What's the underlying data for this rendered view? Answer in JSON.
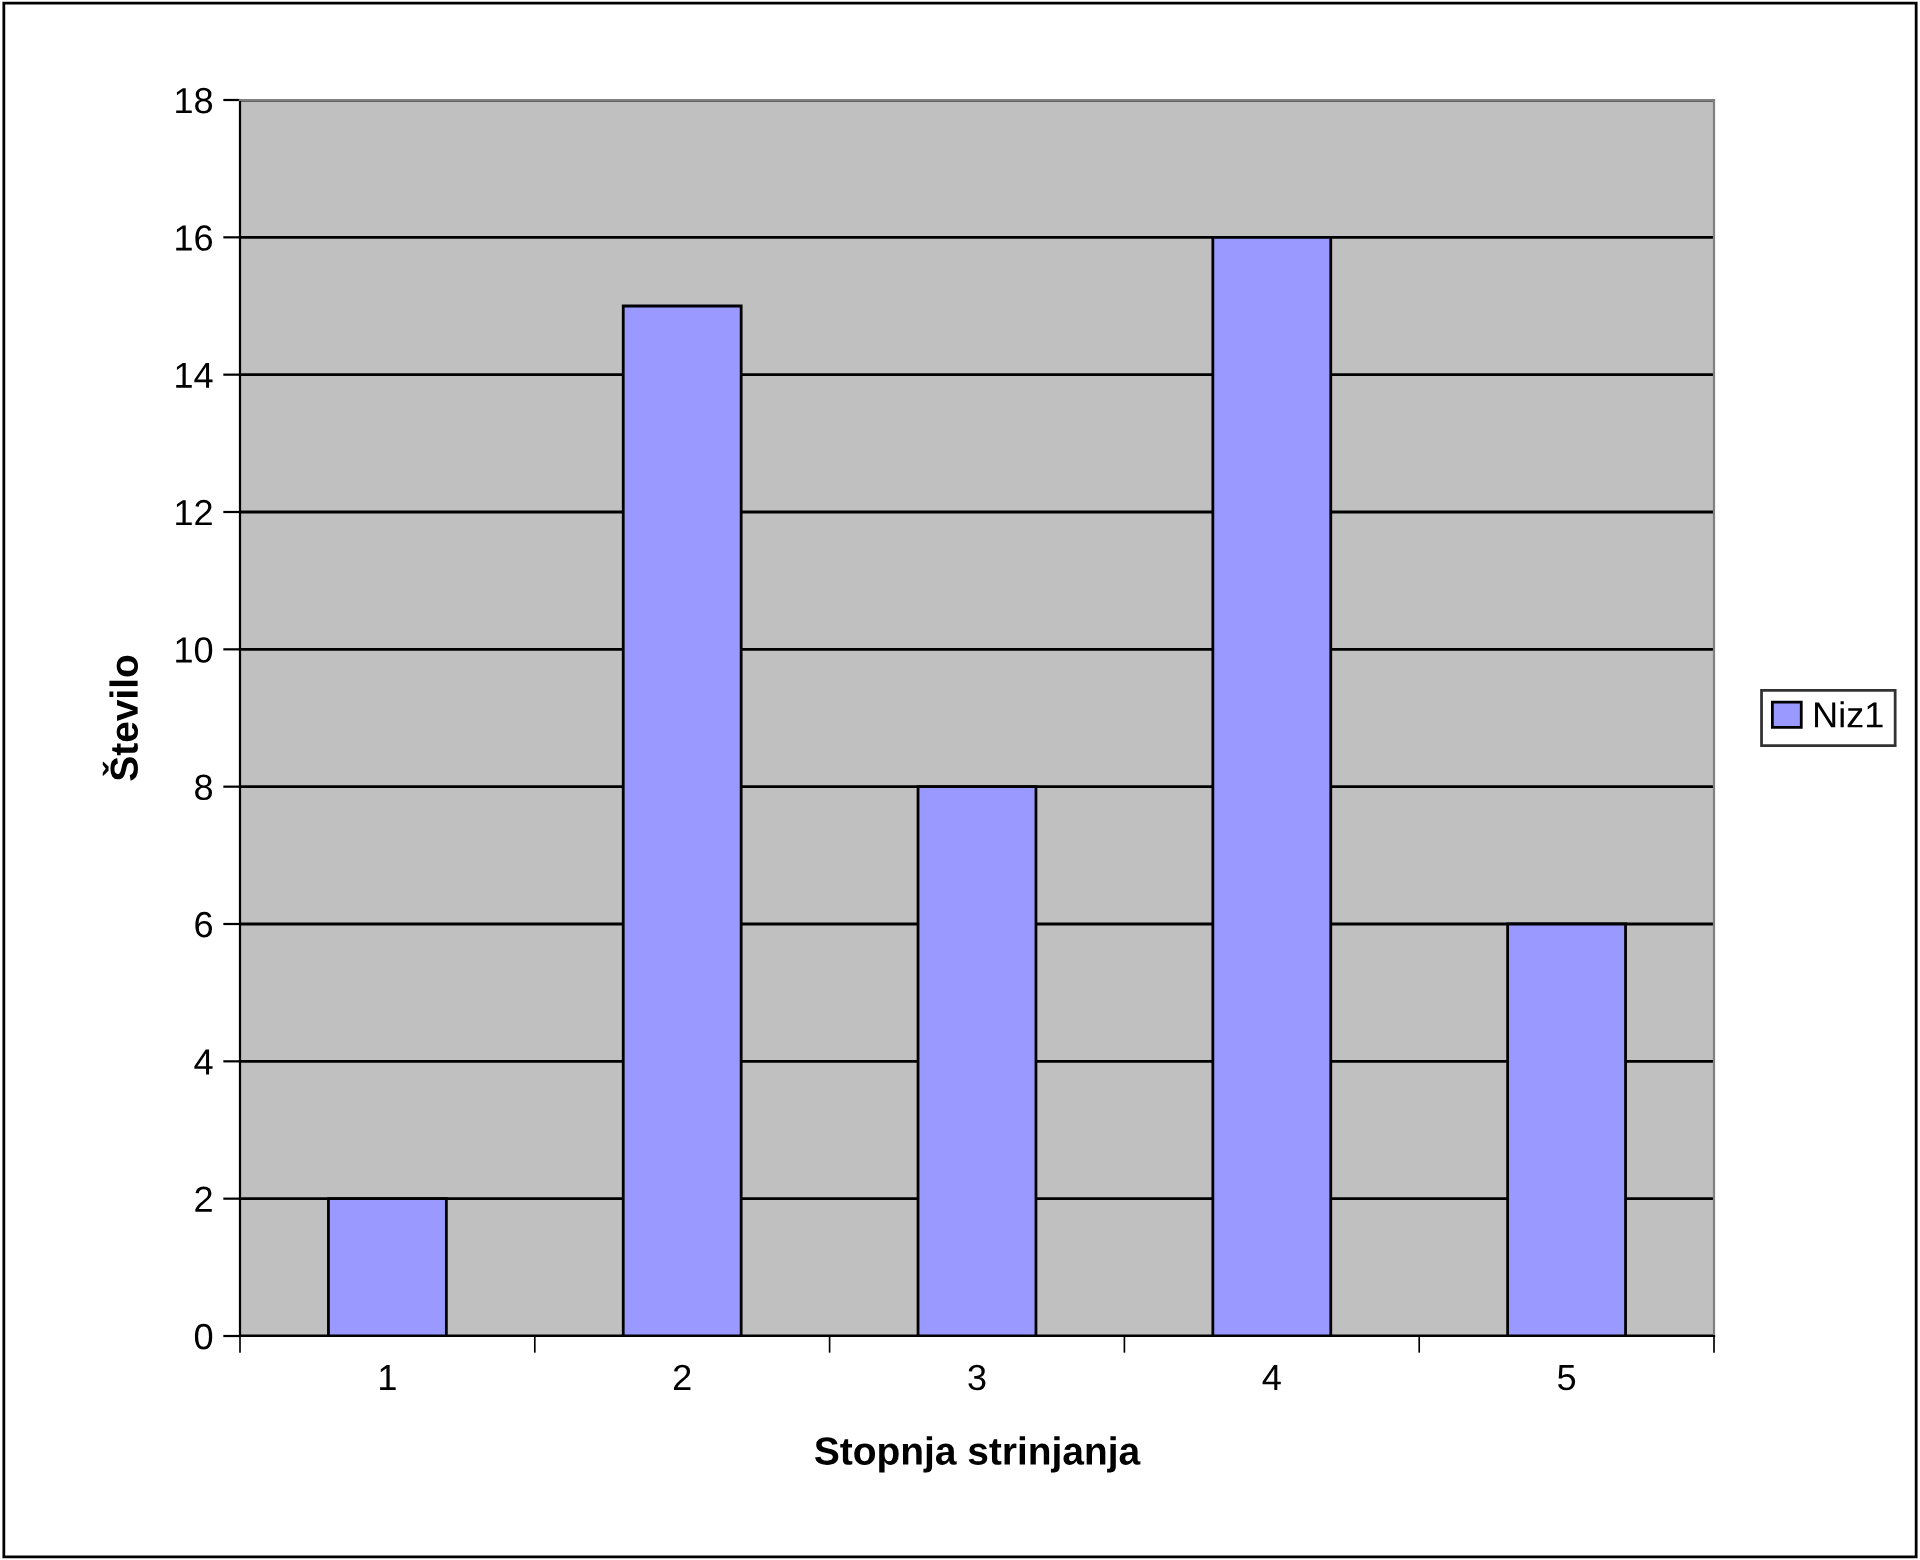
{
  "chart_data": {
    "type": "bar",
    "xlabel": "Stopnja strinjanja",
    "ylabel": "Število",
    "categories": [
      "1",
      "2",
      "3",
      "4",
      "5"
    ],
    "series": [
      {
        "name": "Niz1",
        "color": "#9999ff",
        "values": [
          2,
          15,
          8,
          16,
          6
        ]
      }
    ],
    "ylim": [
      0,
      18
    ],
    "yticks": [
      0,
      2,
      4,
      6,
      8,
      10,
      12,
      14,
      16,
      18
    ],
    "grid": "y",
    "legend": "right"
  }
}
